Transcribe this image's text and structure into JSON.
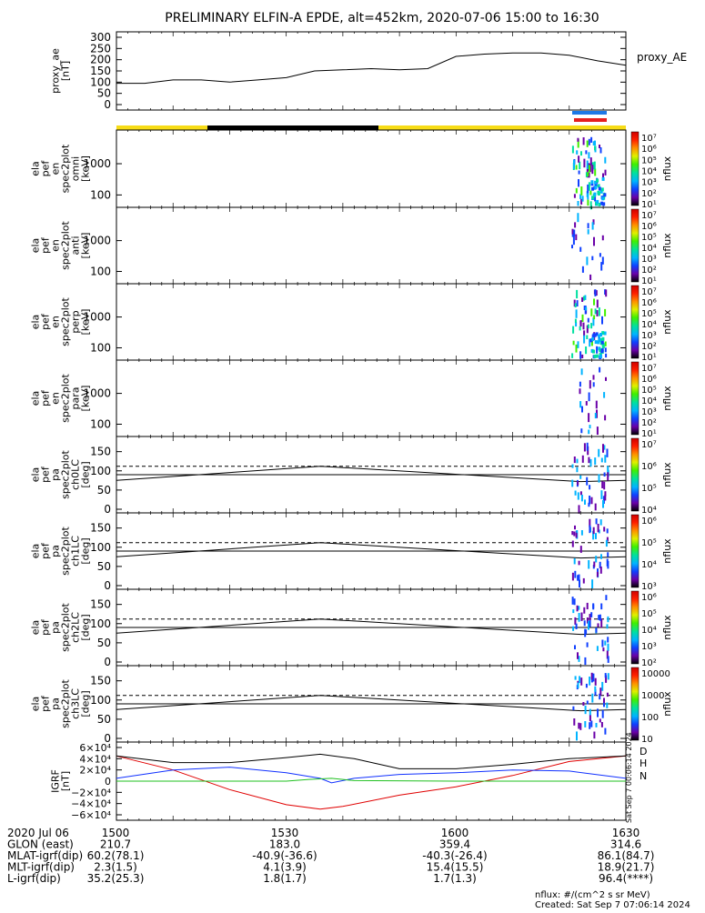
{
  "title": "PRELIMINARY ELFIN-A EPDE, alt=452km, 2020-07-06 15:00 to 16:30",
  "chart_data": {
    "type": "line",
    "time_range": [
      "15:00",
      "16:30"
    ],
    "panels": [
      {
        "id": "proxy_ae",
        "ylabel": [
          "proxy_ae",
          "[nT]"
        ],
        "right_label": "proxy_AE",
        "yticks": [
          "300",
          "250",
          "200",
          "150",
          "100",
          "50",
          "0"
        ],
        "series": [
          {
            "name": "proxy_AE",
            "x": [
              0,
              5,
              10,
              15,
              20,
              25,
              30,
              35,
              40,
              45,
              50,
              55,
              60,
              65,
              70,
              75,
              80,
              85,
              90
            ],
            "y": [
              95,
              95,
              110,
              110,
              100,
              110,
              120,
              150,
              155,
              160,
              155,
              160,
              215,
              225,
              230,
              230,
              220,
              195,
              175
            ]
          }
        ]
      },
      {
        "id": "omni",
        "ylabel": [
          "ela",
          "pef",
          "en",
          "spec2plot",
          "omni",
          "[keV]"
        ],
        "yticks": [
          "1000",
          "100"
        ],
        "cbar": [
          "10⁷",
          "10⁶",
          "10⁵",
          "10⁴",
          "10³",
          "10²",
          "10¹"
        ],
        "cbar_label": "nflux"
      },
      {
        "id": "anti",
        "ylabel": [
          "ela",
          "pef",
          "en",
          "spec2plot",
          "anti",
          "[keV]"
        ],
        "yticks": [
          "1000",
          "100"
        ],
        "cbar": [
          "10⁷",
          "10⁶",
          "10⁵",
          "10⁴",
          "10³",
          "10²",
          "10¹"
        ],
        "cbar_label": "nflux"
      },
      {
        "id": "perp",
        "ylabel": [
          "ela",
          "pef",
          "en",
          "spec2plot",
          "perp",
          "[keV]"
        ],
        "yticks": [
          "1000",
          "100"
        ],
        "cbar": [
          "10⁷",
          "10⁶",
          "10⁵",
          "10⁴",
          "10³",
          "10²",
          "10¹"
        ],
        "cbar_label": "nflux"
      },
      {
        "id": "para",
        "ylabel": [
          "ela",
          "pef",
          "en",
          "spec2plot",
          "para",
          "[keV]"
        ],
        "yticks": [
          "1000",
          "100"
        ],
        "cbar": [
          "10⁷",
          "10⁶",
          "10⁵",
          "10⁴",
          "10³",
          "10²",
          "10¹"
        ],
        "cbar_label": "nflux"
      },
      {
        "id": "ch0lc",
        "ylabel": [
          "ela",
          "pef",
          "pa",
          "spec2plot",
          "ch0LC",
          "[deg]"
        ],
        "yticks": [
          "150",
          "100",
          "50",
          "0"
        ],
        "cbar": [
          "10⁷",
          "10⁶",
          "10⁵",
          "10⁴"
        ],
        "cbar_label": "nflux"
      },
      {
        "id": "ch1lc",
        "ylabel": [
          "ela",
          "pef",
          "pa",
          "spec2plot",
          "ch1LC",
          "[deg]"
        ],
        "yticks": [
          "150",
          "100",
          "50",
          "0"
        ],
        "cbar": [
          "10⁶",
          "10⁵",
          "10⁴",
          "10³"
        ],
        "cbar_label": "nflux"
      },
      {
        "id": "ch2lc",
        "ylabel": [
          "ela",
          "pef",
          "pa",
          "spec2plot",
          "ch2LC",
          "[deg]"
        ],
        "yticks": [
          "150",
          "100",
          "50",
          "0"
        ],
        "cbar": [
          "10⁶",
          "10⁵",
          "10⁴",
          "10³",
          "10²"
        ],
        "cbar_label": "nflux"
      },
      {
        "id": "ch3lc",
        "ylabel": [
          "ela",
          "pef",
          "pa",
          "spec2plot",
          "ch3LC",
          "[deg]"
        ],
        "yticks": [
          "150",
          "100",
          "50",
          "0"
        ],
        "cbar": [
          "10000",
          "1000",
          "100",
          "10"
        ],
        "cbar_label": "nflux"
      },
      {
        "id": "igrf",
        "ylabel": [
          "IGRF",
          "[nT]"
        ],
        "yticks": [
          "6×10⁴",
          "4×10⁴",
          "2×10⁴",
          "0",
          "−2×10⁴",
          "−4×10⁴",
          "−6×10⁴"
        ],
        "ylim": [
          -60000,
          60000
        ],
        "right_labels": [
          "D",
          "H",
          "N"
        ],
        "series": [
          {
            "name": "D",
            "x": [
              0,
              10,
              20,
              30,
              36,
              40,
              50,
              60,
              70,
              80,
              90
            ],
            "y": [
              45000,
              20000,
              -15000,
              -42000,
              -50000,
              -45000,
              -25000,
              -10000,
              10000,
              35000,
              45000
            ]
          },
          {
            "name": "black",
            "x": [
              0,
              10,
              20,
              30,
              36,
              42,
              50,
              60,
              70,
              80,
              90
            ],
            "y": [
              45000,
              33000,
              33000,
              42000,
              48000,
              40000,
              22000,
              22000,
              30000,
              40000,
              45000
            ]
          },
          {
            "name": "blue",
            "x": [
              0,
              10,
              20,
              30,
              36,
              38,
              42,
              50,
              60,
              70,
              80,
              90
            ],
            "y": [
              5000,
              20000,
              25000,
              15000,
              5000,
              -3000,
              5000,
              12000,
              15000,
              20000,
              18000,
              5000
            ]
          },
          {
            "name": "N",
            "x": [
              0,
              30,
              34,
              38,
              42,
              60,
              90
            ],
            "y": [
              0,
              0,
              3000,
              5000,
              1000,
              0,
              0
            ]
          }
        ]
      }
    ],
    "footer": {
      "rows": [
        {
          "label": "2020 Jul 06",
          "values": [
            "1500",
            "1530",
            "1600",
            "1630"
          ]
        },
        {
          "label": "GLON (east)",
          "values": [
            "210.7",
            "183.0",
            "359.4",
            "314.6"
          ]
        },
        {
          "label": "MLAT-igrf(dip)",
          "values": [
            "60.2(78.1)",
            "-40.9(-36.6)",
            "-40.3(-26.4)",
            "86.1(84.7)"
          ]
        },
        {
          "label": "MLT-igrf(dip)",
          "values": [
            "2.3(1.5)",
            "4.1(3.9)",
            "15.4(15.5)",
            "18.9(21.7)"
          ]
        },
        {
          "label": "L-igrf(dip)",
          "values": [
            "35.2(25.3)",
            "1.8(1.7)",
            "1.7(1.3)",
            "96.4(****)"
          ]
        }
      ],
      "units_note": "nflux: #/(cm^2 s sr MeV)",
      "created": "Created: Sat Sep  7 07:06:14 2024",
      "side_stamp": "Sat Sep  7 00:06:14 2024"
    }
  }
}
